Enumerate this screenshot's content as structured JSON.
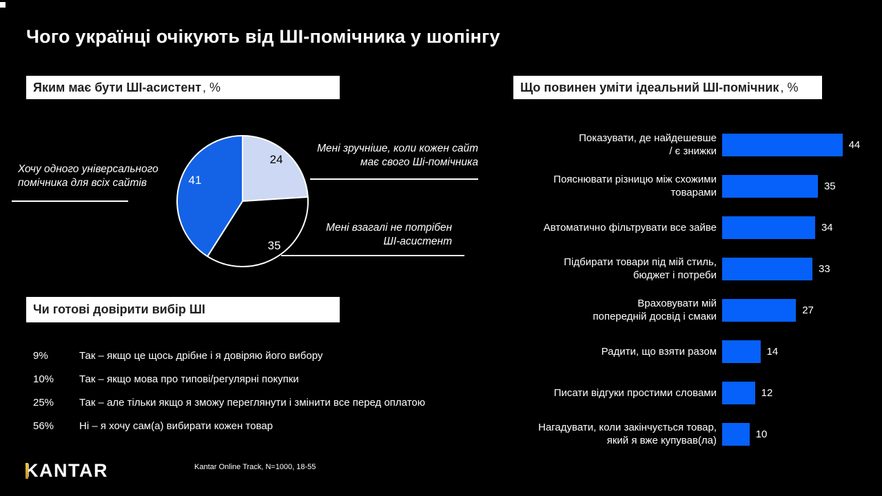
{
  "title": "Чого українці очікують від ШІ-помічника у шопінгу",
  "colors": {
    "background": "#000000",
    "bar_blue": "#0561fa",
    "pie_blue": "#1463e6",
    "pie_light": "#cdd9f4",
    "pie_black": "#000000",
    "header_bg": "#ffffff",
    "header_text": "#1f1f1f",
    "kantar_gold": "#d99f2b"
  },
  "pie_section": {
    "header": "Яким має бути ШІ-асистент",
    "header_suffix": ", %",
    "slices": [
      {
        "value": "24",
        "color": "#cdd9f4"
      },
      {
        "value": "35",
        "color": "#000000"
      },
      {
        "value": "41",
        "color": "#1463e6"
      }
    ],
    "annotations": {
      "left": {
        "line1": "Хочу одного  універсального",
        "line2": "помічника для всіх сайтів"
      },
      "topright": {
        "line1": "Мені зручніше, коли кожен сайт",
        "line2": "має свого Ші-помічника"
      },
      "bottomright": {
        "line1": "Мені взагалі не потрібен",
        "line2": "ШІ-асистент"
      }
    }
  },
  "trust_section": {
    "header": "Чи готові довірити вибір ШІ",
    "rows": [
      {
        "percent": "9%",
        "label": "Так – якщо це щось дрібне і я довіряю його вибору"
      },
      {
        "percent": "10%",
        "label": "Так – якщо мова про типові/регулярні покупки"
      },
      {
        "percent": "25%",
        "label": "Так – але тільки якщо я зможу переглянути і змінити все перед оплатою"
      },
      {
        "percent": "56%",
        "label": "Ні – я хочу сам(а) вибирати кожен товар"
      }
    ]
  },
  "bars_section": {
    "header": "Що повинен уміти ідеальний ШІ-помічник",
    "header_suffix": ", %",
    "items": [
      {
        "label_lines": [
          "Показувати, де найдешевше",
          "/ є знижки"
        ],
        "value": 44
      },
      {
        "label_lines": [
          "Пояснювати різницю між схожими",
          "товарами"
        ],
        "value": 35
      },
      {
        "label_lines": [
          "Автоматично фільтрувати все зайве"
        ],
        "value": 34
      },
      {
        "label_lines": [
          "Підбирати товари під мій стиль,",
          "бюджет і потреби"
        ],
        "value": 33
      },
      {
        "label_lines": [
          "Враховувати мій",
          "попередній досвід і смаки"
        ],
        "value": 27
      },
      {
        "label_lines": [
          "Радити, що взяти разом"
        ],
        "value": 14
      },
      {
        "label_lines": [
          "Писати відгуки простими словами"
        ],
        "value": 12
      },
      {
        "label_lines": [
          "Нагадувати, коли закінчується товар,",
          "який я вже купував(ла)"
        ],
        "value": 10
      }
    ]
  },
  "footer": {
    "logo_text": "KANTAR",
    "source": "Kantar Online Track, N=1000, 18-55"
  },
  "chart_data": [
    {
      "type": "pie",
      "title": "Яким має бути ШІ-асистент, %",
      "labels": [
        "Мені зручніше, коли кожен сайт має свого Ші-помічника",
        "Мені взагалі не потрібен ШІ-асистент",
        "Хочу одного універсального помічника для всіх сайтів"
      ],
      "values": [
        24,
        35,
        41
      ],
      "colors": [
        "#cdd9f4",
        "#000000",
        "#1463e6"
      ],
      "start_angle": "12 o'clock, clockwise",
      "slice_border": "#ffffff"
    },
    {
      "type": "bar",
      "orientation": "horizontal",
      "title": "Що повинен уміти ідеальний ШІ-помічник, %",
      "categories": [
        "Показувати, де найдешевше / є знижки",
        "Пояснювати різницю між схожими товарами",
        "Автоматично фільтрувати все зайве",
        "Підбирати товари під мій стиль, бюджет і потреби",
        "Враховувати мій попередній досвід і смаки",
        "Радити, що взяти разом",
        "Писати відгуки простими словами",
        "Нагадувати, коли закінчується товар, який я вже купував(ла)"
      ],
      "values": [
        44,
        35,
        34,
        33,
        27,
        14,
        12,
        10
      ],
      "bar_color": "#0561fa",
      "xlim": [
        0,
        50
      ],
      "grid": false,
      "value_labels": "right of bars"
    },
    {
      "type": "table",
      "title": "Чи готові довірити вибір ШІ",
      "rows": [
        [
          "9%",
          "Так – якщо це щось дрібне і я довіряю його вибору"
        ],
        [
          "10%",
          "Так – якщо мова про типові/регулярні покупки"
        ],
        [
          "25%",
          "Так – але тільки якщо я зможу переглянути і змінити все перед оплатою"
        ],
        [
          "56%",
          "Ні – я хочу сам(а) вибирати кожен товар"
        ]
      ]
    }
  ]
}
